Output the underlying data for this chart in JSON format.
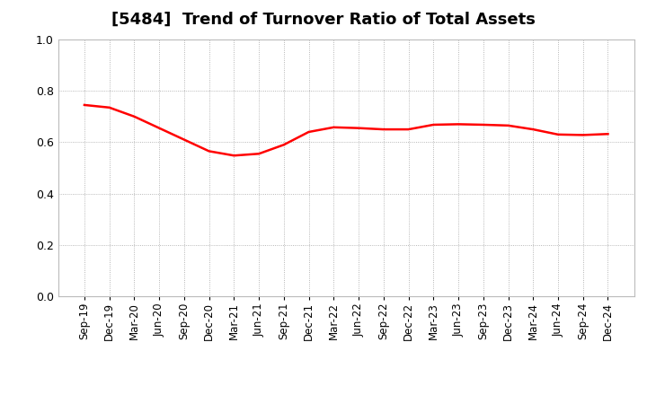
{
  "title": "[5484]  Trend of Turnover Ratio of Total Assets",
  "title_fontsize": 13,
  "line_color": "#FF0000",
  "line_width": 1.8,
  "background_color": "#FFFFFF",
  "grid_color": "#999999",
  "ylim": [
    0.0,
    1.0
  ],
  "yticks": [
    0.0,
    0.2,
    0.4,
    0.6,
    0.8,
    1.0
  ],
  "x_labels": [
    "Sep-19",
    "Dec-19",
    "Mar-20",
    "Jun-20",
    "Sep-20",
    "Dec-20",
    "Mar-21",
    "Jun-21",
    "Sep-21",
    "Dec-21",
    "Mar-22",
    "Jun-22",
    "Sep-22",
    "Dec-22",
    "Mar-23",
    "Jun-23",
    "Sep-23",
    "Dec-23",
    "Mar-24",
    "Jun-24",
    "Sep-24",
    "Dec-24"
  ],
  "values": [
    0.745,
    0.735,
    0.7,
    0.655,
    0.61,
    0.565,
    0.548,
    0.555,
    0.59,
    0.64,
    0.658,
    0.655,
    0.65,
    0.65,
    0.668,
    0.67,
    0.668,
    0.665,
    0.65,
    0.63,
    0.628,
    0.632
  ]
}
